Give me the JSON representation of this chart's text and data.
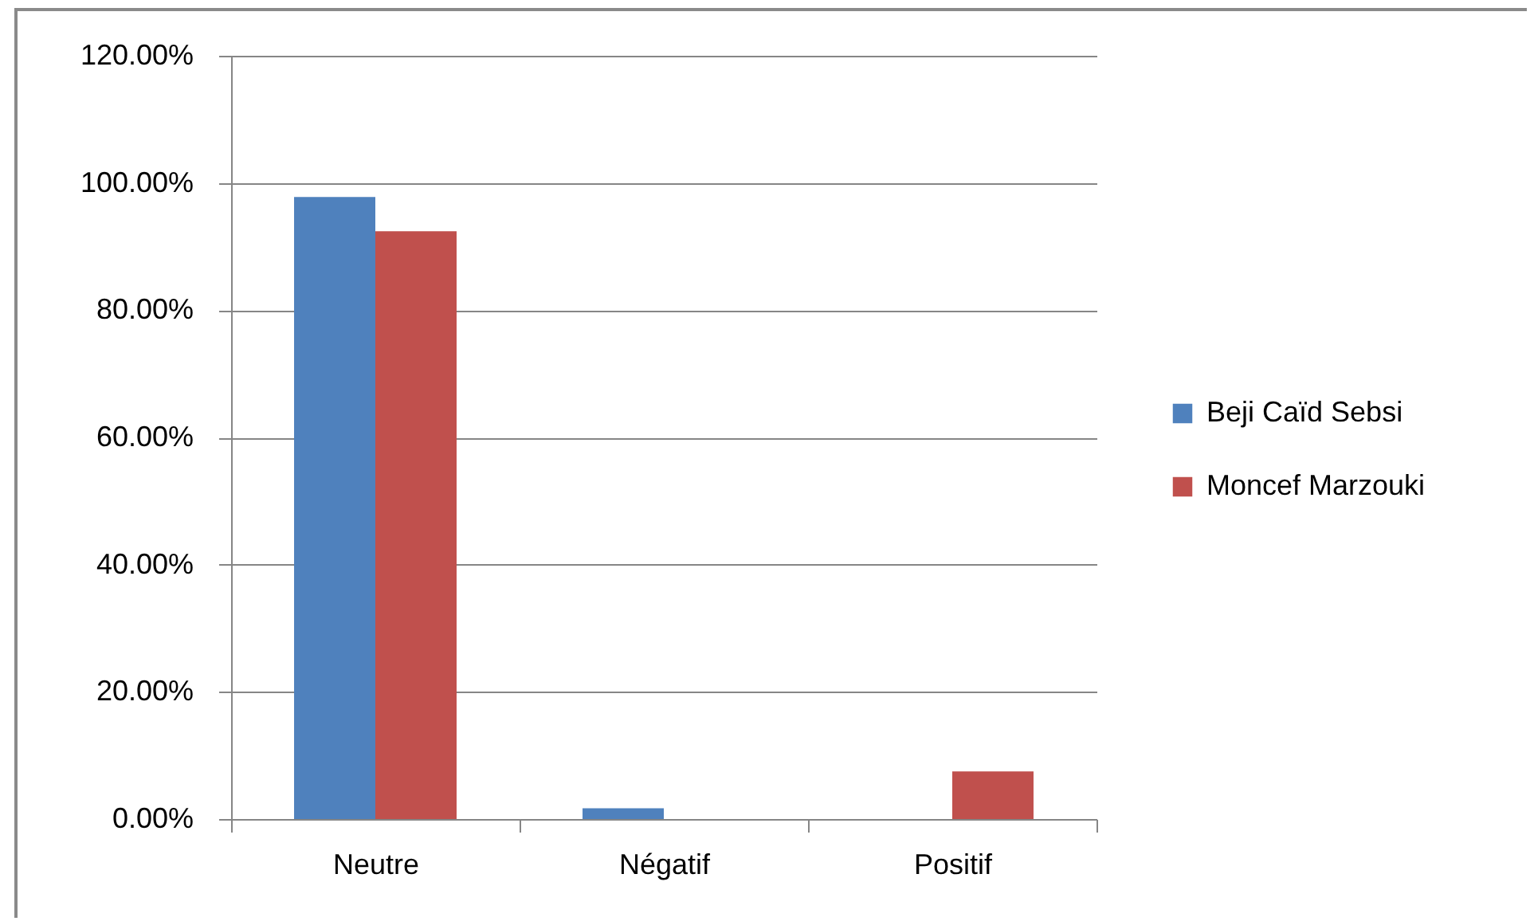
{
  "chart_data": {
    "type": "bar",
    "categories": [
      "Neutre",
      "Négatif",
      "Positif"
    ],
    "series": [
      {
        "name": "Beji Caïd Sebsi",
        "color": "#4f81bd",
        "values": [
          97.8,
          1.7,
          0
        ]
      },
      {
        "name": "Moncef Marzouki",
        "color": "#c0504d",
        "values": [
          92.4,
          0,
          7.5
        ]
      }
    ],
    "ylim": [
      0,
      120
    ],
    "yticks": [
      {
        "value": 0,
        "label": "0.00%"
      },
      {
        "value": 20,
        "label": "20.00%"
      },
      {
        "value": 40,
        "label": "40.00%"
      },
      {
        "value": 60,
        "label": "60.00%"
      },
      {
        "value": 80,
        "label": "80.00%"
      },
      {
        "value": 100,
        "label": "100.00%"
      },
      {
        "value": 120,
        "label": "120.00%"
      }
    ],
    "grid": "y",
    "legend": "right"
  }
}
